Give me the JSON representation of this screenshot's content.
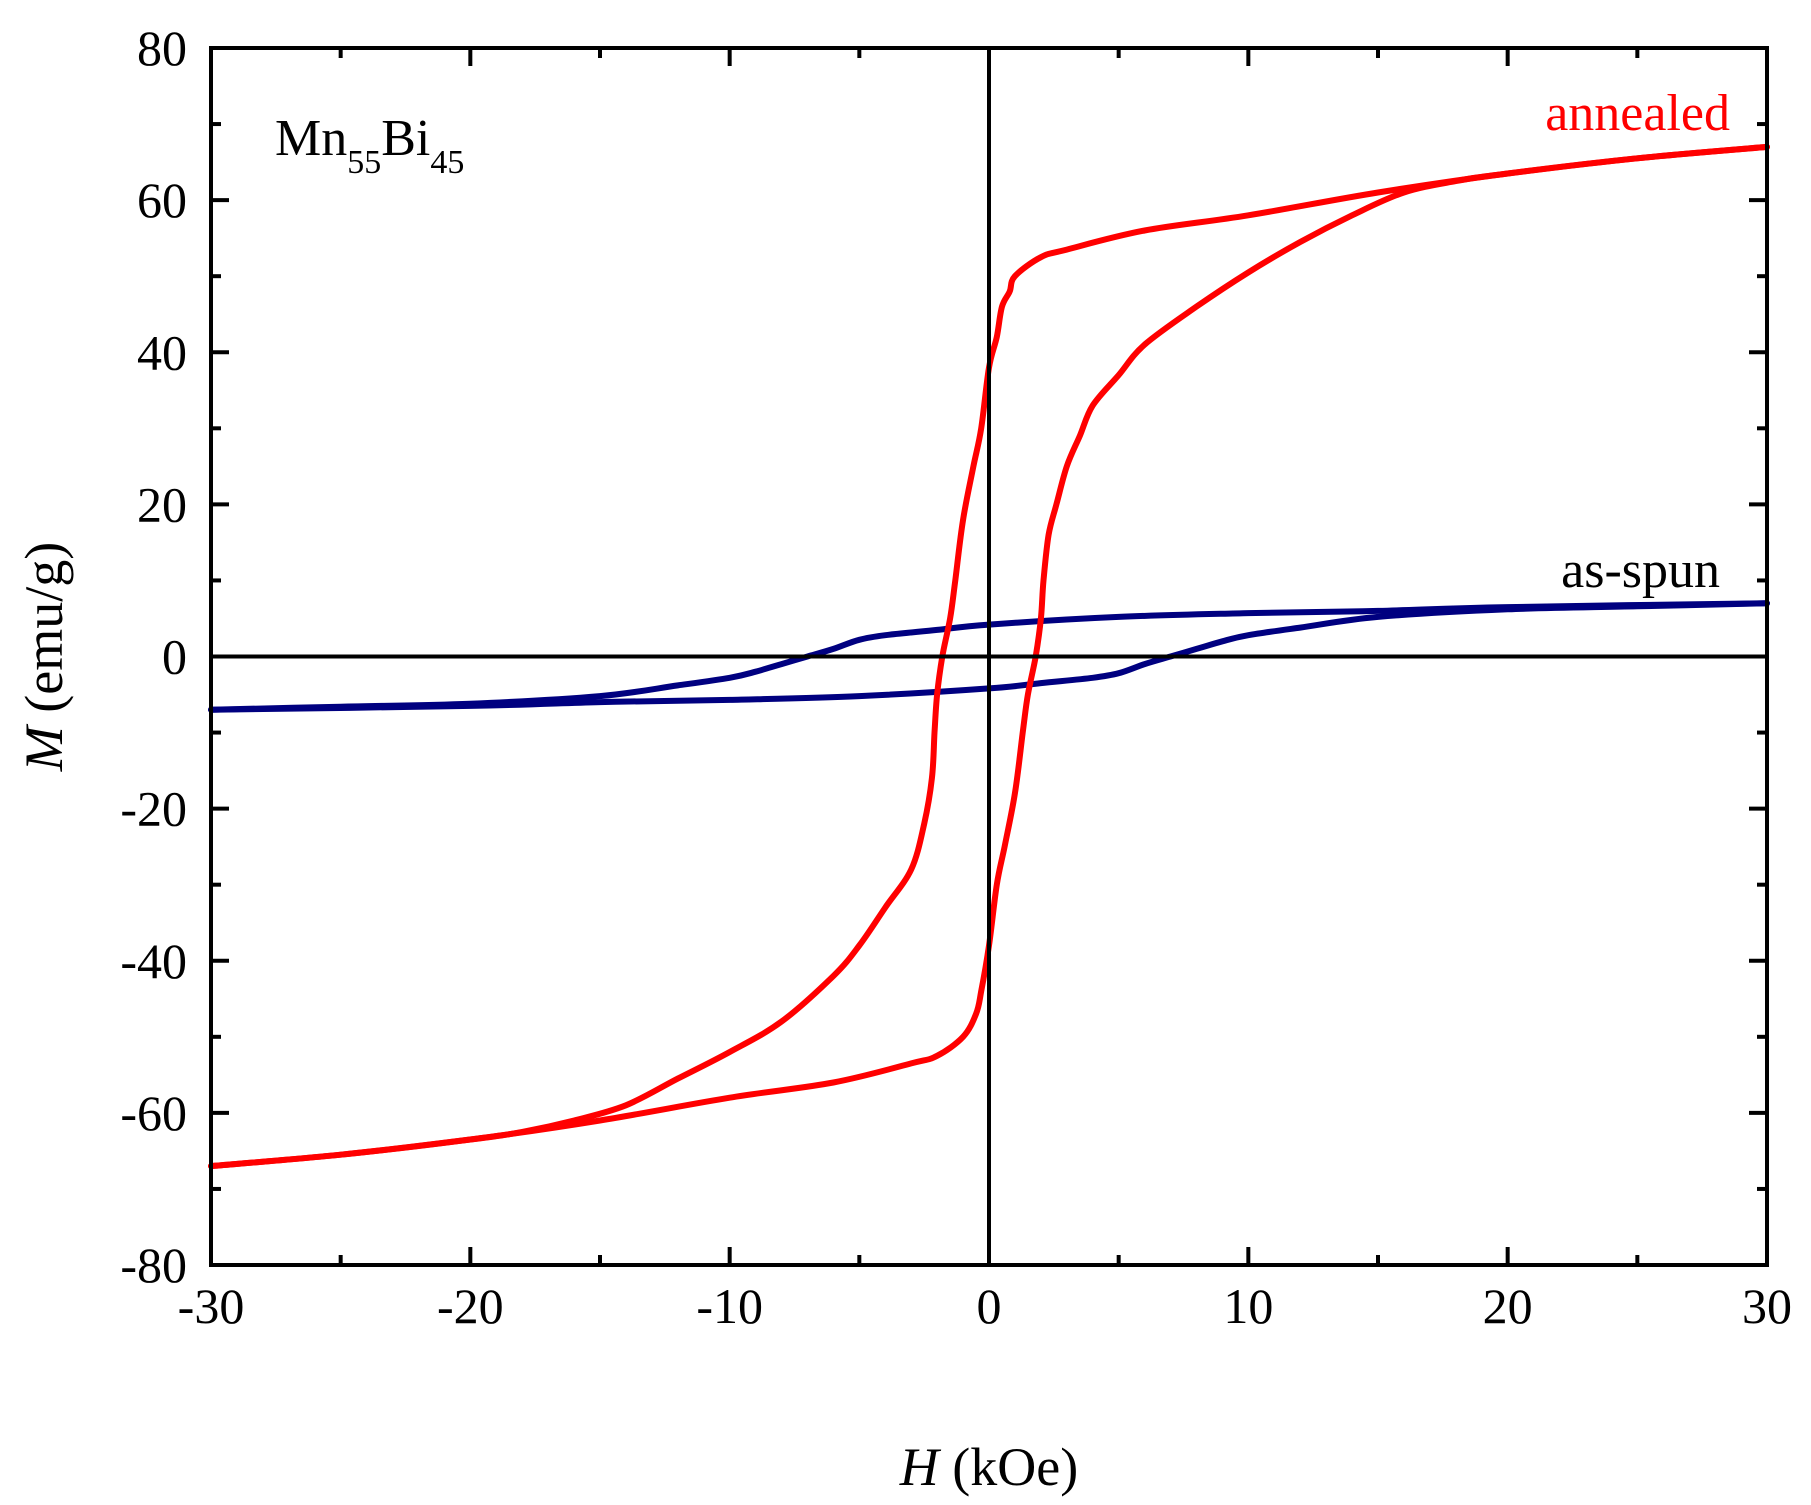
{
  "chart_data": {
    "type": "line",
    "title": "",
    "xlabel": {
      "symbol": "H",
      "unit": "(kOe)"
    },
    "ylabel": {
      "symbol": "M",
      "unit": "(emu/g)"
    },
    "xlim": [
      -30,
      30
    ],
    "ylim": [
      -80,
      80
    ],
    "x_ticks": [
      -30,
      -20,
      -10,
      0,
      10,
      20,
      30
    ],
    "x_tick_labels": [
      "-30",
      "-20",
      "-10",
      "0",
      "10",
      "20",
      "30"
    ],
    "y_ticks": [
      -80,
      -60,
      -40,
      -20,
      0,
      20,
      40,
      60,
      80
    ],
    "y_tick_labels": [
      "-80",
      "-60",
      "-40",
      "-20",
      "0",
      "20",
      "40",
      "60",
      "80"
    ],
    "grid": false,
    "zero_lines": true,
    "sample_label": {
      "base1": "Mn",
      "sub1": "55",
      "base2": "Bi",
      "sub2": "45"
    },
    "series": [
      {
        "name": "annealed",
        "color": "#ff0000",
        "descending_branch": [
          [
            30,
            67
          ],
          [
            25,
            65.5
          ],
          [
            20,
            63.5
          ],
          [
            15,
            61
          ],
          [
            10,
            58
          ],
          [
            6,
            56
          ],
          [
            3,
            53.5
          ],
          [
            2,
            52.5
          ],
          [
            1,
            50
          ],
          [
            0.8,
            48
          ],
          [
            0.5,
            46
          ],
          [
            0.3,
            42
          ],
          [
            0,
            38
          ],
          [
            -0.3,
            30
          ],
          [
            -0.6,
            25
          ],
          [
            -1,
            18
          ],
          [
            -1.3,
            10
          ],
          [
            -1.5,
            5
          ],
          [
            -1.8,
            0
          ],
          [
            -2,
            -5
          ],
          [
            -2.1,
            -10
          ],
          [
            -2.2,
            -16
          ],
          [
            -2.5,
            -22
          ],
          [
            -3,
            -28
          ],
          [
            -4,
            -33
          ],
          [
            -5,
            -38
          ],
          [
            -6,
            -42
          ],
          [
            -8,
            -48
          ],
          [
            -10,
            -52
          ],
          [
            -12,
            -55.5
          ],
          [
            -14,
            -59
          ],
          [
            -16,
            -61
          ],
          [
            -18,
            -62.5
          ],
          [
            -20,
            -63.5
          ],
          [
            -25,
            -65.5
          ],
          [
            -30,
            -67
          ]
        ],
        "ascending_branch": [
          [
            -30,
            -67
          ],
          [
            -25,
            -65.5
          ],
          [
            -20,
            -63.5
          ],
          [
            -15,
            -61
          ],
          [
            -10,
            -58
          ],
          [
            -6,
            -56
          ],
          [
            -3,
            -53.5
          ],
          [
            -2,
            -52.5
          ],
          [
            -1,
            -50
          ],
          [
            -0.5,
            -47
          ],
          [
            -0.3,
            -44
          ],
          [
            0,
            -38
          ],
          [
            0.3,
            -30
          ],
          [
            0.6,
            -25
          ],
          [
            1,
            -18
          ],
          [
            1.3,
            -10
          ],
          [
            1.5,
            -5
          ],
          [
            1.8,
            0
          ],
          [
            2,
            5
          ],
          [
            2.1,
            10
          ],
          [
            2.3,
            16
          ],
          [
            2.6,
            20
          ],
          [
            3,
            25
          ],
          [
            3.5,
            29
          ],
          [
            4,
            33
          ],
          [
            5,
            37
          ],
          [
            6,
            41
          ],
          [
            8,
            46
          ],
          [
            10,
            50.5
          ],
          [
            12,
            54.5
          ],
          [
            14,
            58
          ],
          [
            16,
            61
          ],
          [
            18,
            62.5
          ],
          [
            20,
            63.5
          ],
          [
            25,
            65.5
          ],
          [
            30,
            67
          ]
        ]
      },
      {
        "name": "as-spun",
        "color": "#000080",
        "descending_branch": [
          [
            30,
            7
          ],
          [
            20,
            6.5
          ],
          [
            15,
            6
          ],
          [
            10,
            5.7
          ],
          [
            5,
            5.2
          ],
          [
            0,
            4.2
          ],
          [
            -2,
            3.5
          ],
          [
            -4,
            2.8
          ],
          [
            -5,
            2.2
          ],
          [
            -6,
            1
          ],
          [
            -7,
            0
          ],
          [
            -8,
            -1
          ],
          [
            -9,
            -2
          ],
          [
            -10,
            -2.8
          ],
          [
            -12,
            -3.8
          ],
          [
            -15,
            -5.2
          ],
          [
            -20,
            -6.2
          ],
          [
            -25,
            -6.6
          ],
          [
            -30,
            -7
          ]
        ],
        "ascending_branch": [
          [
            -30,
            -7
          ],
          [
            -20,
            -6.5
          ],
          [
            -15,
            -6
          ],
          [
            -10,
            -5.7
          ],
          [
            -5,
            -5.2
          ],
          [
            0,
            -4.2
          ],
          [
            2,
            -3.5
          ],
          [
            4,
            -2.8
          ],
          [
            5,
            -2.2
          ],
          [
            6,
            -1
          ],
          [
            7,
            0
          ],
          [
            8,
            1
          ],
          [
            9,
            2
          ],
          [
            10,
            2.8
          ],
          [
            12,
            3.8
          ],
          [
            15,
            5.2
          ],
          [
            20,
            6.2
          ],
          [
            25,
            6.6
          ],
          [
            30,
            7
          ]
        ]
      }
    ]
  }
}
